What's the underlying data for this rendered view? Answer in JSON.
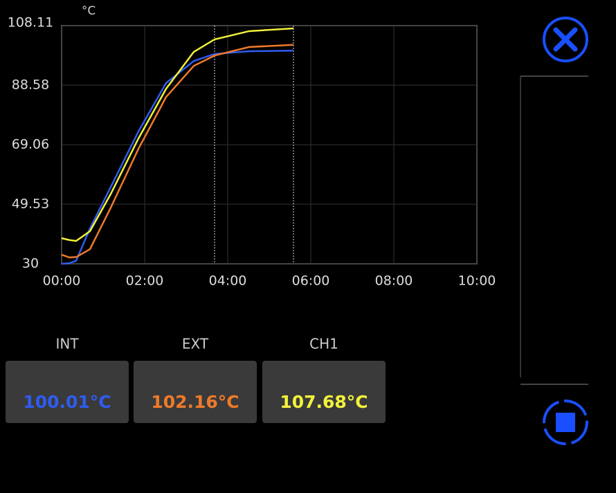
{
  "chart_data": {
    "type": "line",
    "ylabel": "°C",
    "x": [
      0,
      11,
      21,
      41,
      71,
      111,
      151,
      191,
      221,
      271,
      335
    ],
    "series": [
      {
        "name": "INT",
        "color": "#2f5cf0",
        "values": [
          30,
          30.2,
          31,
          41.6,
          55.2,
          73.4,
          89.3,
          96.5,
          98.8,
          99.7,
          99.9
        ]
      },
      {
        "name": "EXT",
        "color": "#ef7a2a",
        "values": [
          33,
          32.1,
          32.2,
          34.8,
          48.4,
          67.7,
          84.7,
          94.9,
          98.3,
          101.1,
          101.8
        ]
      },
      {
        "name": "CH1",
        "color": "#f2f23a",
        "values": [
          38.4,
          37.8,
          37.5,
          40.7,
          52.9,
          71.1,
          87.4,
          99.5,
          103.6,
          106.3,
          107.2
        ]
      }
    ],
    "xlim": [
      0,
      600
    ],
    "xticks": [
      {
        "value": 0,
        "label": "00:00"
      },
      {
        "value": 120,
        "label": "02:00"
      },
      {
        "value": 240,
        "label": "04:00"
      },
      {
        "value": 360,
        "label": "06:00"
      },
      {
        "value": 480,
        "label": "08:00"
      },
      {
        "value": 600,
        "label": "10:00"
      }
    ],
    "ylim": [
      30,
      108.11
    ],
    "yticks": [
      30,
      49.53,
      69.06,
      88.58,
      108.11
    ],
    "grid": true,
    "cursor_x": [
      221,
      335
    ]
  },
  "current_readings": [
    "100.01°C",
    "102.16°C",
    "107.68°C"
  ]
}
